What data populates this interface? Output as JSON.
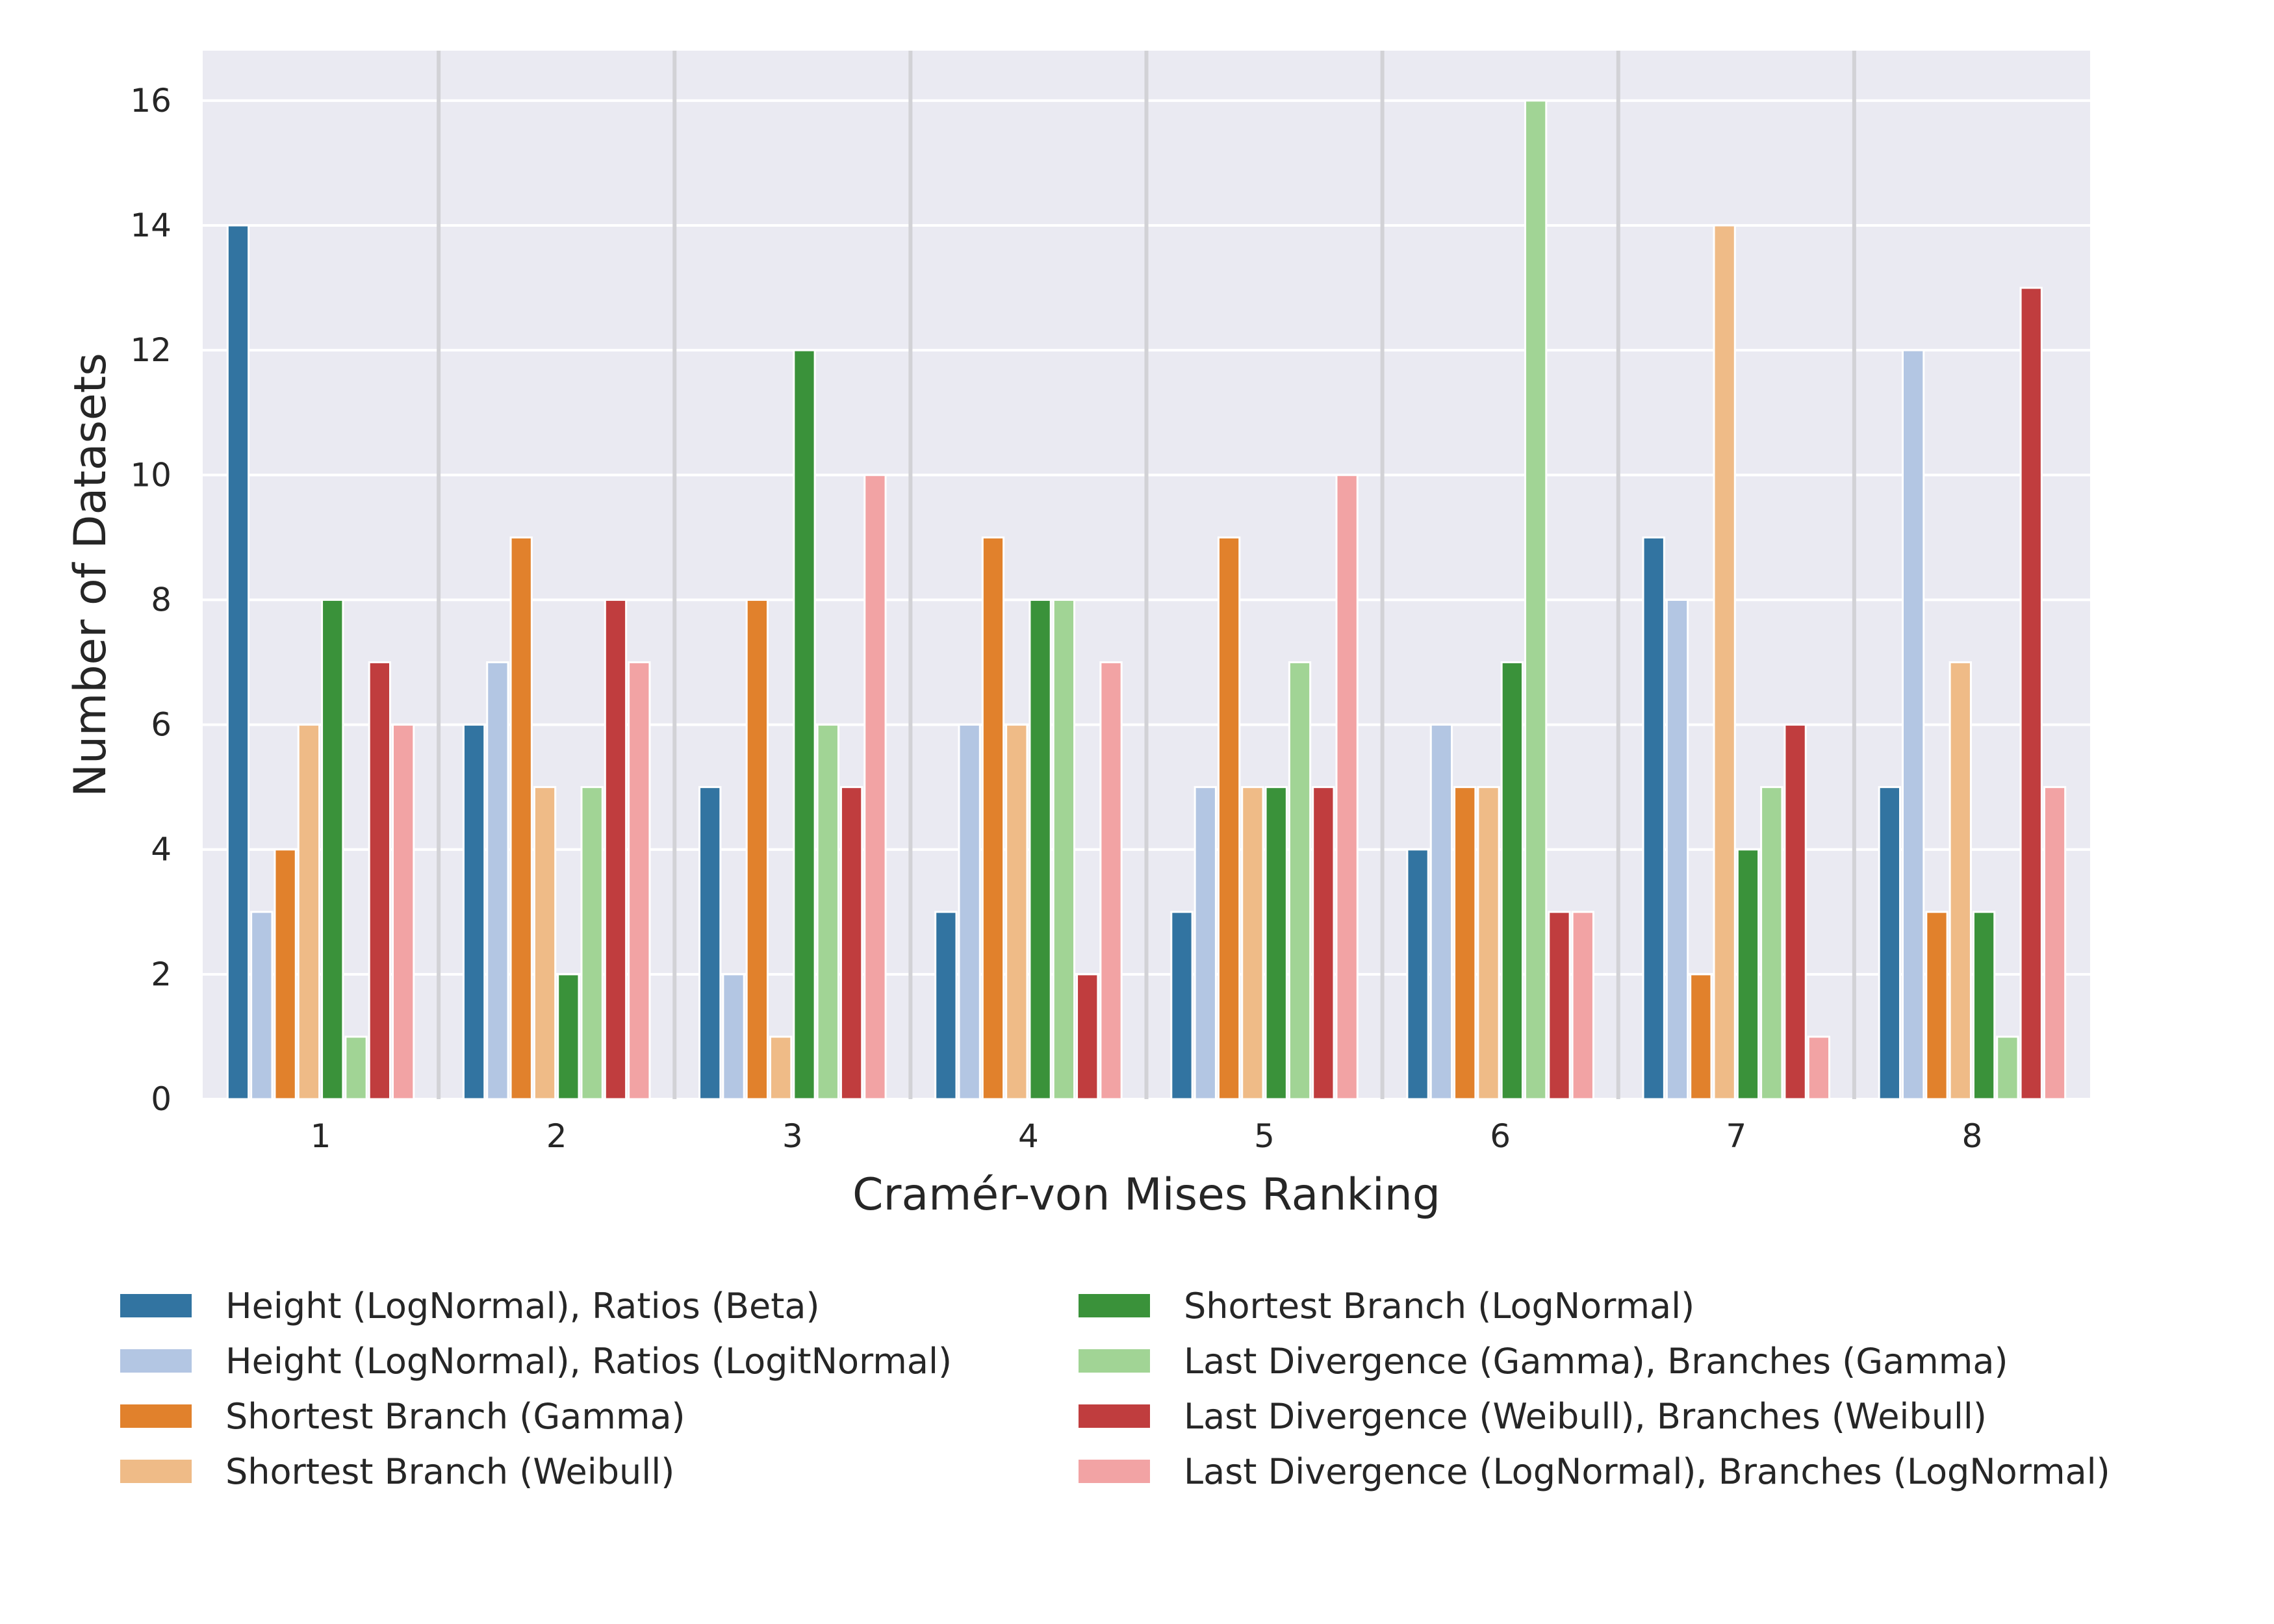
{
  "chart_data": {
    "type": "bar",
    "xlabel": "Cramér-von Mises Ranking",
    "ylabel": "Number of Datasets",
    "categories": [
      "1",
      "2",
      "3",
      "4",
      "5",
      "6",
      "7",
      "8"
    ],
    "ylim": [
      0,
      16.8
    ],
    "yticks": [
      0,
      2,
      4,
      6,
      8,
      10,
      12,
      14,
      16
    ],
    "grid": true,
    "legend_position": "below",
    "series": [
      {
        "name": "Height (LogNormal), Ratios (Beta)",
        "color": "#3274a1",
        "values": [
          14,
          6,
          5,
          3,
          3,
          4,
          9,
          5
        ]
      },
      {
        "name": "Height (LogNormal), Ratios (LogitNormal)",
        "color": "#b3c6e3",
        "values": [
          3,
          7,
          2,
          6,
          5,
          6,
          8,
          12
        ]
      },
      {
        "name": "Shortest Branch (Gamma)",
        "color": "#e1812c",
        "values": [
          4,
          9,
          8,
          9,
          9,
          5,
          2,
          3
        ]
      },
      {
        "name": "Shortest Branch (Weibull)",
        "color": "#efbb87",
        "values": [
          6,
          5,
          1,
          6,
          5,
          5,
          14,
          7
        ]
      },
      {
        "name": "Shortest Branch (LogNormal)",
        "color": "#3a923a",
        "values": [
          8,
          2,
          12,
          8,
          5,
          7,
          4,
          3
        ]
      },
      {
        "name": "Last Divergence (Gamma), Branches (Gamma)",
        "color": "#a1d495",
        "values": [
          1,
          5,
          6,
          8,
          7,
          16,
          5,
          1
        ]
      },
      {
        "name": "Last Divergence (Weibull), Branches (Weibull)",
        "color": "#c03d3e",
        "values": [
          7,
          8,
          5,
          2,
          5,
          3,
          6,
          13
        ]
      },
      {
        "name": "Last Divergence (LogNormal), Branches (LogNormal)",
        "color": "#f2a3a4",
        "values": [
          6,
          7,
          10,
          7,
          10,
          3,
          1,
          5
        ]
      }
    ]
  }
}
